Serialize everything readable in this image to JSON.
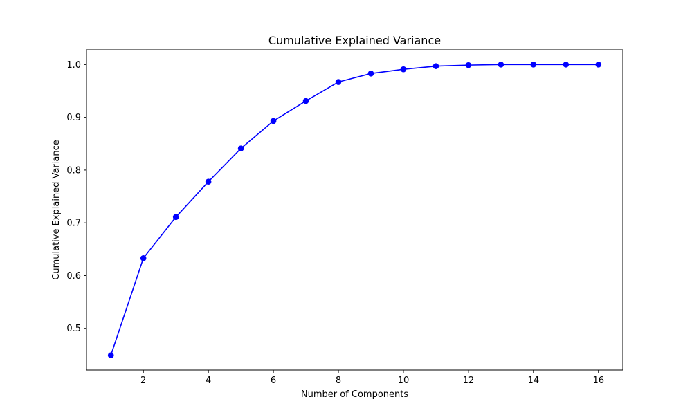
{
  "chart_data": {
    "type": "line",
    "title": "Cumulative Explained Variance",
    "xlabel": "Number of Components",
    "ylabel": "Cumulative Explained Variance",
    "x": [
      1,
      2,
      3,
      4,
      5,
      6,
      7,
      8,
      9,
      10,
      11,
      12,
      13,
      14,
      15,
      16
    ],
    "series": [
      {
        "values": [
          0.449,
          0.633,
          0.711,
          0.778,
          0.841,
          0.893,
          0.931,
          0.967,
          0.983,
          0.991,
          0.997,
          0.999,
          1.0,
          1.0,
          1.0,
          1.0
        ],
        "color": "#0000ff",
        "marker": "circle"
      }
    ],
    "xlim": [
      0.25,
      16.75
    ],
    "ylim": [
      0.421,
      1.028
    ],
    "xticks": [
      2,
      4,
      6,
      8,
      10,
      12,
      14,
      16
    ],
    "yticks": [
      0.5,
      0.6,
      0.7,
      0.8,
      0.9,
      1.0
    ],
    "xtick_labels": [
      "2",
      "4",
      "6",
      "8",
      "10",
      "12",
      "14",
      "16"
    ],
    "ytick_labels": [
      "0.5",
      "0.6",
      "0.7",
      "0.8",
      "0.9",
      "1.0"
    ],
    "grid": false,
    "legend": "none"
  }
}
